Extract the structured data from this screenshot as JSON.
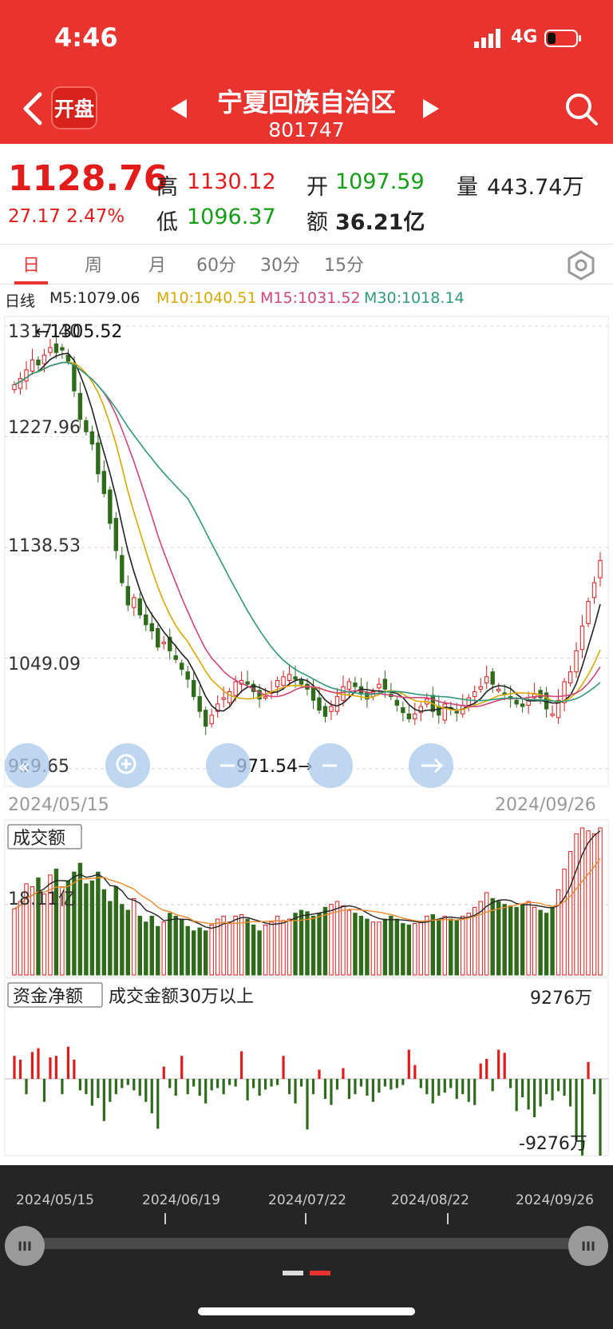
{
  "status": {
    "time": "4:46",
    "network": "4G"
  },
  "header": {
    "logo_text": "开盘",
    "title": "宁夏回族自治区",
    "code": "801747",
    "icons": {
      "back": "chevron-left-icon",
      "prev": "triangle-left-icon",
      "next": "triangle-right-icon",
      "search": "search-icon"
    }
  },
  "quote": {
    "price": "1128.76",
    "change": "27.17 2.47%",
    "high_label": "高",
    "high": "1130.12",
    "low_label": "低",
    "low": "1096.37",
    "open_label": "开",
    "open": "1097.59",
    "amount_label": "额",
    "amount": "36.21亿",
    "volume_label": "量",
    "volume": "443.74万"
  },
  "tabs": [
    "日",
    "周",
    "月",
    "60分",
    "30分",
    "15分"
  ],
  "active_tab": 0,
  "ma": {
    "label": "日线",
    "m5": "M5:1079.06",
    "m10": "M10:1040.51",
    "m15": "M15:1031.52",
    "m30": "M30:1018.14"
  },
  "colors": {
    "up": "#e21b1b",
    "down": "#2e6b1a",
    "m5": "#222222",
    "m10": "#d9a800",
    "m15": "#d2437a",
    "m30": "#2e9a7a",
    "header_bg": "#e8332f"
  },
  "main_chart": {
    "y_ticks": [
      "1317.40",
      "1227.96",
      "1138.53",
      "1049.09",
      "959.65"
    ],
    "max_marker": "←1305.52",
    "min_marker": "971.54→",
    "start_date": "2024/05/15",
    "end_date": "2024/09/26"
  },
  "volume_panel": {
    "label": "成交额",
    "tick": "18.11亿"
  },
  "flow_panel": {
    "label": "资金净额",
    "desc": "成交金额30万以上",
    "max": "9276万",
    "min": "-9276万"
  },
  "timeline": {
    "dates": [
      "2024/05/15",
      "2024/06/19",
      "2024/07/22",
      "2024/08/22",
      "2024/09/26"
    ],
    "handle_glyph": "III"
  },
  "chart_data": {
    "type": "candlestick",
    "y_range": [
      959.65,
      1317.4
    ],
    "closes": [
      1270,
      1275,
      1282,
      1290,
      1286,
      1294,
      1300,
      1296,
      1298,
      1289,
      1265,
      1242,
      1232,
      1222,
      1198,
      1182,
      1158,
      1136,
      1110,
      1092,
      1098,
      1084,
      1076,
      1071,
      1058,
      1062,
      1055,
      1048,
      1040,
      1032,
      1018,
      1006,
      994,
      1003,
      1012,
      1017,
      1022,
      1030,
      1031,
      1028,
      1022,
      1016,
      1018,
      1022,
      1031,
      1034,
      1036,
      1032,
      1028,
      1024,
      1015,
      1007,
      1002,
      1010,
      1018,
      1026,
      1030,
      1026,
      1020,
      1016,
      1022,
      1028,
      1024,
      1018,
      1011,
      1005,
      1000,
      1004,
      1010,
      1016,
      1006,
      1003,
      1012,
      1008,
      1005,
      1011,
      1017,
      1022,
      1026,
      1034,
      1028,
      1024,
      1020,
      1016,
      1012,
      1010,
      1015,
      1020,
      1017,
      1008,
      1004,
      1015,
      1030,
      1038,
      1055,
      1075,
      1095,
      1110,
      1128
    ],
    "volume_ratio": [
      0.45,
      0.5,
      0.62,
      0.6,
      0.66,
      0.55,
      0.68,
      0.72,
      0.6,
      0.64,
      0.7,
      0.76,
      0.62,
      0.64,
      0.7,
      0.58,
      0.5,
      0.6,
      0.48,
      0.44,
      0.52,
      0.4,
      0.36,
      0.4,
      0.33,
      0.36,
      0.42,
      0.4,
      0.38,
      0.33,
      0.3,
      0.32,
      0.3,
      0.34,
      0.38,
      0.4,
      0.36,
      0.4,
      0.41,
      0.38,
      0.34,
      0.3,
      0.34,
      0.36,
      0.4,
      0.37,
      0.38,
      0.42,
      0.44,
      0.43,
      0.4,
      0.42,
      0.46,
      0.48,
      0.5,
      0.47,
      0.44,
      0.42,
      0.4,
      0.38,
      0.36,
      0.36,
      0.38,
      0.4,
      0.38,
      0.35,
      0.34,
      0.35,
      0.36,
      0.4,
      0.41,
      0.38,
      0.4,
      0.38,
      0.37,
      0.4,
      0.42,
      0.46,
      0.5,
      0.56,
      0.52,
      0.5,
      0.48,
      0.47,
      0.46,
      0.48,
      0.5,
      0.46,
      0.44,
      0.42,
      0.46,
      0.58,
      0.72,
      0.84,
      0.96,
      1.0,
      0.98,
      0.96,
      1.0
    ],
    "net_flow_ratio": [
      0.3,
      0.25,
      -0.2,
      0.35,
      0.4,
      -0.3,
      0.28,
      0.3,
      -0.2,
      0.42,
      0.25,
      -0.15,
      -0.2,
      -0.35,
      -0.25,
      -0.55,
      -0.3,
      -0.2,
      -0.12,
      -0.08,
      -0.15,
      -0.22,
      -0.3,
      -0.45,
      -0.65,
      0.16,
      -0.12,
      -0.22,
      0.3,
      -0.2,
      -0.1,
      -0.22,
      -0.32,
      -0.15,
      -0.12,
      -0.2,
      -0.08,
      -0.1,
      0.36,
      -0.28,
      -0.12,
      -0.22,
      -0.14,
      -0.1,
      -0.08,
      0.3,
      -0.2,
      -0.32,
      -0.1,
      -0.66,
      -0.2,
      0.12,
      -0.26,
      -0.34,
      -0.14,
      0.14,
      -0.26,
      -0.2,
      -0.1,
      -0.22,
      -0.3,
      -0.18,
      -0.1,
      -0.14,
      -0.12,
      -0.08,
      0.38,
      0.18,
      -0.12,
      -0.2,
      -0.32,
      -0.22,
      -0.18,
      -0.12,
      -0.26,
      -0.2,
      -0.3,
      -0.34,
      0.2,
      0.26,
      -0.16,
      0.38,
      0.34,
      -0.12,
      -0.42,
      -0.24,
      -0.4,
      -0.5,
      -0.36,
      -0.2,
      -0.28,
      -0.16,
      -0.22,
      -0.36,
      -0.8,
      -1.0,
      0.22,
      -0.2,
      -1.0
    ]
  }
}
